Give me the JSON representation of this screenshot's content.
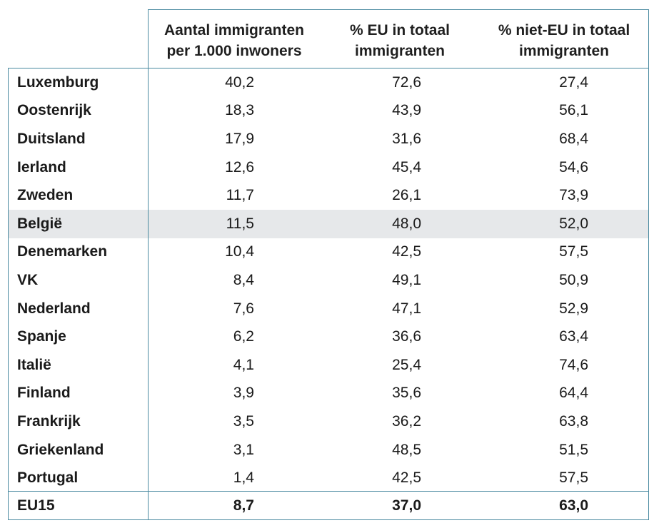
{
  "headers": {
    "col1_line1": "Aantal immigranten",
    "col1_line2": "per 1.000 inwoners",
    "col2_line1": "% EU in totaal",
    "col2_line2": "immigranten",
    "col3_line1": "% niet-EU in totaal",
    "col3_line2": "immigranten"
  },
  "rows": [
    {
      "country": "Luxemburg",
      "per1000": "40,2",
      "eu": "72,6",
      "noneu": "27,4"
    },
    {
      "country": "Oostenrijk",
      "per1000": "18,3",
      "eu": "43,9",
      "noneu": "56,1"
    },
    {
      "country": "Duitsland",
      "per1000": "17,9",
      "eu": "31,6",
      "noneu": "68,4"
    },
    {
      "country": "Ierland",
      "per1000": "12,6",
      "eu": "45,4",
      "noneu": "54,6"
    },
    {
      "country": "Zweden",
      "per1000": "11,7",
      "eu": "26,1",
      "noneu": "73,9"
    },
    {
      "country": "België",
      "per1000": "11,5",
      "eu": "48,0",
      "noneu": "52,0"
    },
    {
      "country": "Denemarken",
      "per1000": "10,4",
      "eu": "42,5",
      "noneu": "57,5"
    },
    {
      "country": "VK",
      "per1000": "8,4",
      "eu": "49,1",
      "noneu": "50,9"
    },
    {
      "country": "Nederland",
      "per1000": "7,6",
      "eu": "47,1",
      "noneu": "52,9"
    },
    {
      "country": "Spanje",
      "per1000": "6,2",
      "eu": "36,6",
      "noneu": "63,4"
    },
    {
      "country": "Italië",
      "per1000": "4,1",
      "eu": "25,4",
      "noneu": "74,6"
    },
    {
      "country": "Finland",
      "per1000": "3,9",
      "eu": "35,6",
      "noneu": "64,4"
    },
    {
      "country": "Frankrijk",
      "per1000": "3,5",
      "eu": "36,2",
      "noneu": "63,8"
    },
    {
      "country": "Griekenland",
      "per1000": "3,1",
      "eu": "48,5",
      "noneu": "51,5"
    },
    {
      "country": "Portugal",
      "per1000": "1,4",
      "eu": "42,5",
      "noneu": "57,5"
    }
  ],
  "highlighted_row": "België",
  "total": {
    "country": "EU15",
    "per1000": "8,7",
    "eu": "37,0",
    "noneu": "63,0"
  },
  "colors": {
    "border": "#4a8aa0",
    "highlight": "#e6e8ea"
  }
}
